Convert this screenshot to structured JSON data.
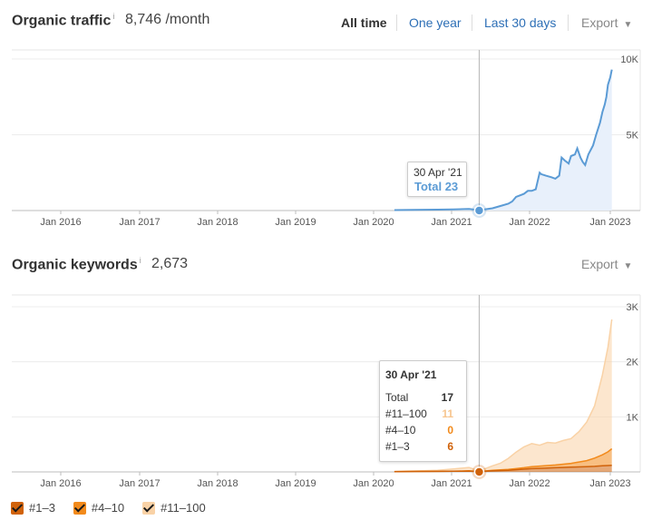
{
  "traffic": {
    "title": "Organic traffic",
    "info": "i",
    "value": "8,746 /month",
    "ranges": [
      "All time",
      "One year",
      "Last 30 days"
    ],
    "active_range": "All time",
    "export": "Export"
  },
  "keywords": {
    "title": "Organic keywords",
    "info": "i",
    "value": "2,673",
    "export": "Export"
  },
  "tooltip_traffic": {
    "date": "30 Apr '21",
    "label": "Total 23"
  },
  "tooltip_keywords": {
    "date": "30 Apr '21",
    "rows": [
      {
        "label": "Total",
        "value": "17",
        "color": "#333333"
      },
      {
        "label": "#11–100",
        "value": "11",
        "color": "#f7c58e"
      },
      {
        "label": "#4–10",
        "value": "0",
        "color": "#f28a1b"
      },
      {
        "label": "#1–3",
        "value": "6",
        "color": "#d0620a"
      }
    ]
  },
  "legend": [
    {
      "label": "#1–3",
      "color": "#d0620a"
    },
    {
      "label": "#4–10",
      "color": "#f28a1b"
    },
    {
      "label": "#11–100",
      "color": "#f9d2a6"
    }
  ],
  "chart_data": [
    {
      "type": "area",
      "title": "Organic traffic",
      "x_ticks": [
        "Jan 2016",
        "Jan 2017",
        "Jan 2018",
        "Jan 2019",
        "Jan 2020",
        "Jan 2021",
        "Jan 2022",
        "Jan 2023"
      ],
      "y_ticks": [
        "10K",
        "5K"
      ],
      "ylim": [
        0,
        10000
      ],
      "xlim": [
        2015.4,
        2023.4
      ],
      "grid": true,
      "colors": {
        "line": "#5b9bd5",
        "fill": "#e8f0fb",
        "marker": "#5b9bd5"
      },
      "marker": {
        "x": 2021.33,
        "y": 23
      },
      "series": [
        {
          "x": [
            2020.25,
            2020.5,
            2020.8,
            2021.0,
            2021.2,
            2021.33,
            2021.5,
            2021.6,
            2021.7,
            2021.75,
            2021.8,
            2021.85,
            2021.9,
            2021.95,
            2022.0,
            2022.05,
            2022.1,
            2022.12,
            2022.18,
            2022.25,
            2022.3,
            2022.35,
            2022.38,
            2022.42,
            2022.47,
            2022.5,
            2022.55,
            2022.58,
            2022.62,
            2022.65,
            2022.68,
            2022.72,
            2022.78,
            2022.82,
            2022.87,
            2022.9,
            2022.93,
            2022.95,
            2022.97,
            2023.0,
            2023.02
          ],
          "y": [
            30,
            40,
            60,
            80,
            100,
            23,
            150,
            300,
            450,
            600,
            900,
            1000,
            1100,
            1300,
            1300,
            1400,
            2500,
            2400,
            2300,
            2200,
            2100,
            2300,
            3500,
            3300,
            3100,
            3600,
            3700,
            4100,
            3500,
            3200,
            3000,
            3700,
            4300,
            5000,
            5800,
            6500,
            7000,
            7500,
            8300,
            8800,
            9300
          ]
        }
      ]
    },
    {
      "type": "area",
      "title": "Organic keywords",
      "x_ticks": [
        "Jan 2016",
        "Jan 2017",
        "Jan 2018",
        "Jan 2019",
        "Jan 2020",
        "Jan 2021",
        "Jan 2022",
        "Jan 2023"
      ],
      "y_ticks": [
        "3K",
        "2K",
        "1K"
      ],
      "ylim": [
        0,
        3000
      ],
      "xlim": [
        2015.4,
        2023.4
      ],
      "grid": true,
      "stacked": true,
      "marker": {
        "x": 2021.33,
        "y": 17
      },
      "x": [
        2020.25,
        2020.5,
        2020.8,
        2021.0,
        2021.2,
        2021.33,
        2021.5,
        2021.6,
        2021.7,
        2021.8,
        2021.9,
        2022.0,
        2022.1,
        2022.2,
        2022.3,
        2022.4,
        2022.5,
        2022.6,
        2022.7,
        2022.8,
        2022.9,
        2022.97,
        2023.02
      ],
      "series": [
        {
          "name": "#1–3",
          "color": "#d0620a",
          "values": [
            5,
            8,
            10,
            12,
            15,
            6,
            20,
            25,
            30,
            40,
            50,
            60,
            65,
            70,
            75,
            80,
            85,
            90,
            95,
            100,
            110,
            115,
            120
          ]
        },
        {
          "name": "#4–10",
          "color": "#f28a1b",
          "values": [
            0,
            0,
            0,
            0,
            5,
            0,
            10,
            12,
            15,
            20,
            25,
            35,
            40,
            45,
            50,
            60,
            70,
            90,
            110,
            150,
            200,
            250,
            300
          ]
        },
        {
          "name": "#11–100",
          "color": "#f9d2a6",
          "values": [
            5,
            8,
            20,
            40,
            60,
            11,
            80,
            120,
            200,
            300,
            380,
            420,
            380,
            420,
            400,
            430,
            450,
            550,
            700,
            950,
            1450,
            1900,
            2350
          ]
        }
      ]
    }
  ]
}
